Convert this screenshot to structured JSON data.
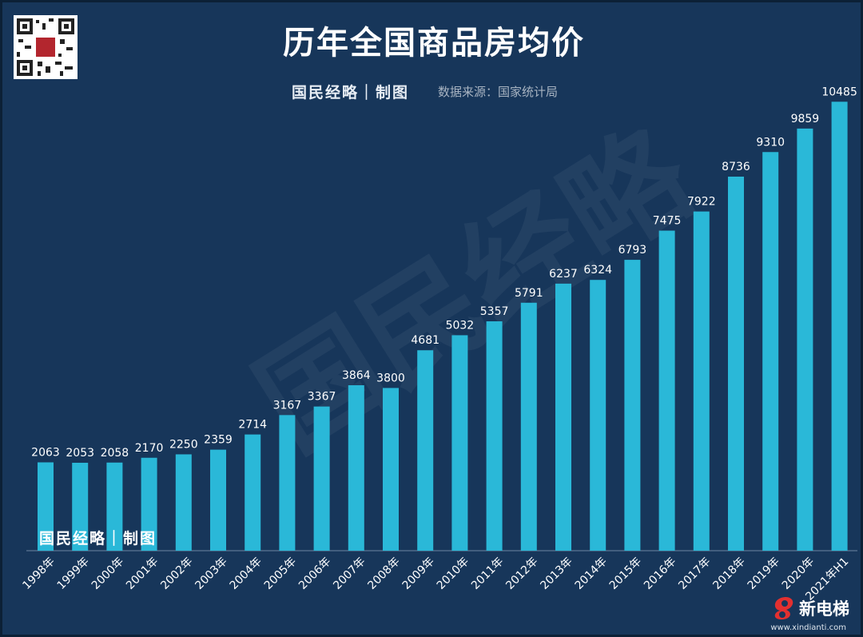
{
  "header": {
    "title": "历年全国商品房均价",
    "brand": "国民经略｜制图",
    "source": "数据来源：国家统计局"
  },
  "watermark": {
    "text": "国民经略"
  },
  "footer": {
    "brand": "国民经略｜制图",
    "logo_text": "新电梯",
    "logo_url": "www.xindianti.com"
  },
  "colors": {
    "background": "#17365a",
    "bar": "#2ab8d8",
    "text": "#ffffff"
  },
  "icons": {
    "qr": "qr-code-icon",
    "logo": "elevator-logo-icon"
  },
  "chart_data": {
    "type": "bar",
    "title": "历年全国商品房均价",
    "xlabel": "",
    "ylabel": "",
    "ylim": [
      0,
      11200
    ],
    "grid": false,
    "categories": [
      "1998年",
      "1999年",
      "2000年",
      "2001年",
      "2002年",
      "2003年",
      "2004年",
      "2005年",
      "2006年",
      "2007年",
      "2008年",
      "2009年",
      "2010年",
      "2011年",
      "2012年",
      "2013年",
      "2014年",
      "2015年",
      "2016年",
      "2017年",
      "2018年",
      "2019年",
      "2020年",
      "2021年H1"
    ],
    "values": [
      2063,
      2053,
      2058,
      2170,
      2250,
      2359,
      2714,
      3167,
      3367,
      3864,
      3800,
      4681,
      5032,
      5357,
      5791,
      6237,
      6324,
      6793,
      7475,
      7922,
      8736,
      9310,
      9859,
      10485
    ]
  }
}
